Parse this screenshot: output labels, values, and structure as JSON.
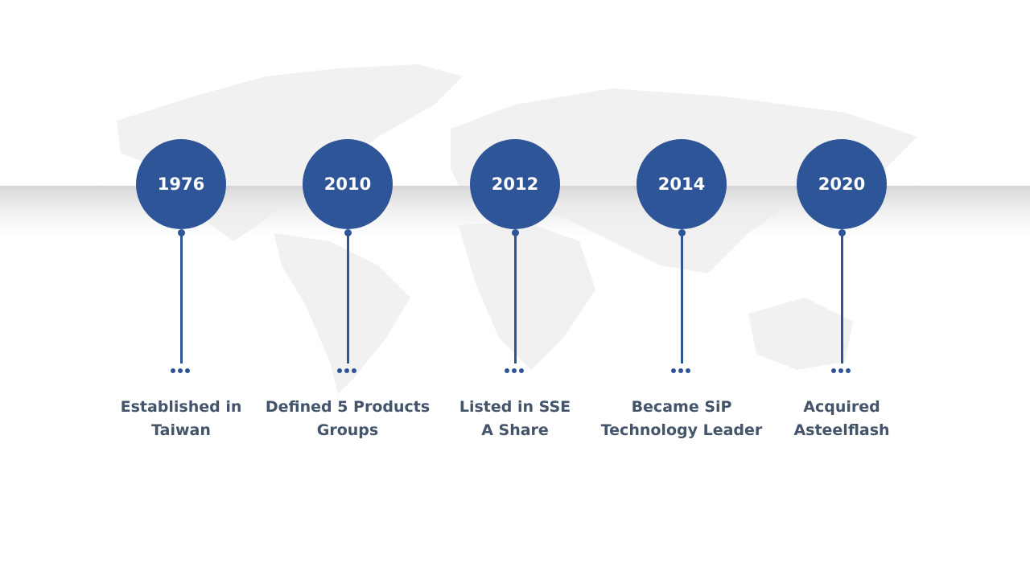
{
  "colors": {
    "accent": "#2e5597",
    "text": "#44546a",
    "map": "#f0f0f0"
  },
  "background_icon": "world-map",
  "timeline": [
    {
      "year": "1976",
      "line1": "Established in",
      "line2": "Taiwan"
    },
    {
      "year": "2010",
      "line1": "Defined 5 Products",
      "line2": "Groups"
    },
    {
      "year": "2012",
      "line1": "Listed in SSE",
      "line2": "A Share"
    },
    {
      "year": "2014",
      "line1": "Became SiP",
      "line2": "Technology Leader"
    },
    {
      "year": "2020",
      "line1": "Acquired",
      "line2": "Asteelflash"
    }
  ]
}
